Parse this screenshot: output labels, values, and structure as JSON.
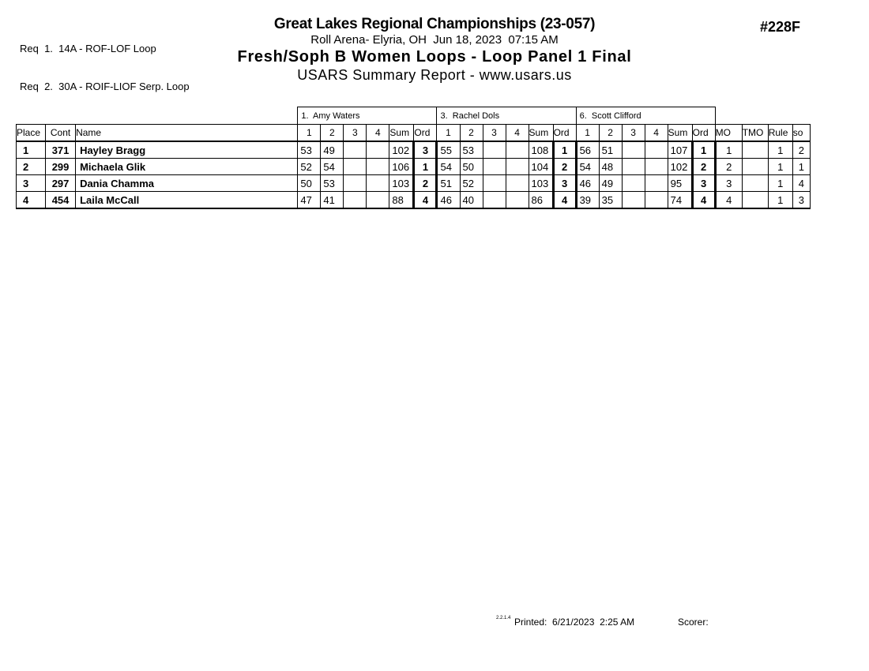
{
  "header": {
    "req_lines": [
      "Req  1.  14A - ROF-LOF Loop",
      "Req  2.  30A - ROIF-LIOF Serp. Loop"
    ],
    "event_code": "#228F",
    "title": "Great Lakes Regional Championships (23-057)",
    "venue": "Roll Arena- Elyria, OH  Jun 18, 2023  07:15 AM",
    "event_title": "Fresh/Soph B Women Loops - Loop Panel 1 Final",
    "report_type": "USARS Summary Report - www.usars.us"
  },
  "table": {
    "base_headers": [
      "Place",
      "Cont",
      "Name"
    ],
    "judges": [
      "1.  Amy Waters",
      "3.  Rachel Dols",
      "6.  Scott Clifford"
    ],
    "judge_subheaders": [
      "1",
      "2",
      "3",
      "4",
      "Sum",
      "Ord"
    ],
    "tail_headers": [
      "MO",
      "TMO",
      "Rule",
      "so"
    ],
    "rows": [
      {
        "place": "1",
        "cont": "371",
        "name": "Hayley Bragg",
        "judges": [
          {
            "scores": [
              "53",
              "49",
              "",
              ""
            ],
            "sum": "102",
            "ord": "3"
          },
          {
            "scores": [
              "55",
              "53",
              "",
              ""
            ],
            "sum": "108",
            "ord": "1"
          },
          {
            "scores": [
              "56",
              "51",
              "",
              ""
            ],
            "sum": "107",
            "ord": "1"
          }
        ],
        "mo": "1",
        "tmo": "",
        "rule": "1",
        "so": "2"
      },
      {
        "place": "2",
        "cont": "299",
        "name": "Michaela Glik",
        "judges": [
          {
            "scores": [
              "52",
              "54",
              "",
              ""
            ],
            "sum": "106",
            "ord": "1"
          },
          {
            "scores": [
              "54",
              "50",
              "",
              ""
            ],
            "sum": "104",
            "ord": "2"
          },
          {
            "scores": [
              "54",
              "48",
              "",
              ""
            ],
            "sum": "102",
            "ord": "2"
          }
        ],
        "mo": "2",
        "tmo": "",
        "rule": "1",
        "so": "1"
      },
      {
        "place": "3",
        "cont": "297",
        "name": "Dania Chamma",
        "judges": [
          {
            "scores": [
              "50",
              "53",
              "",
              ""
            ],
            "sum": "103",
            "ord": "2"
          },
          {
            "scores": [
              "51",
              "52",
              "",
              ""
            ],
            "sum": "103",
            "ord": "3"
          },
          {
            "scores": [
              "46",
              "49",
              "",
              ""
            ],
            "sum": "95",
            "ord": "3"
          }
        ],
        "mo": "3",
        "tmo": "",
        "rule": "1",
        "so": "4"
      },
      {
        "place": "4",
        "cont": "454",
        "name": "Laila McCall",
        "judges": [
          {
            "scores": [
              "47",
              "41",
              "",
              ""
            ],
            "sum": "88",
            "ord": "4"
          },
          {
            "scores": [
              "46",
              "40",
              "",
              ""
            ],
            "sum": "86",
            "ord": "4"
          },
          {
            "scores": [
              "39",
              "35",
              "",
              ""
            ],
            "sum": "74",
            "ord": "4"
          }
        ],
        "mo": "4",
        "tmo": "",
        "rule": "1",
        "so": "3"
      }
    ]
  },
  "footer": {
    "version": "2.2.1.4",
    "printed": "Printed:  6/21/2023  2:25 AM",
    "scorer": "Scorer:"
  }
}
